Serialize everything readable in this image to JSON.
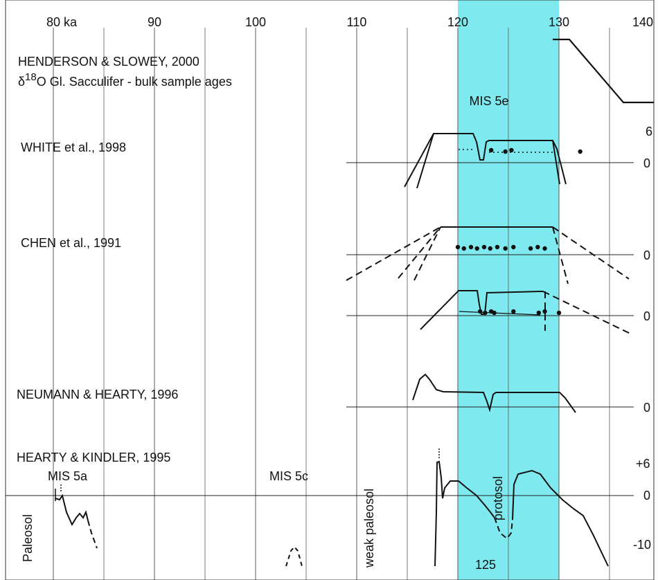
{
  "chart_data": {
    "type": "line",
    "x_unit": "ka",
    "x_ticks": [
      {
        "value": 80,
        "label": "80  ka"
      },
      {
        "value": 90,
        "label": "90"
      },
      {
        "value": 100,
        "label": "100"
      },
      {
        "value": 110,
        "label": "110"
      },
      {
        "value": 120,
        "label": "120"
      },
      {
        "value": 130,
        "label": "130"
      },
      {
        "value": 140,
        "label": "140"
      }
    ],
    "xlim": [
      75,
      140
    ],
    "grid": true,
    "shaded_band": {
      "x": [
        120,
        130
      ],
      "color": "#7ee9ee",
      "label": "MIS 5e",
      "bottom_label": "125"
    },
    "colors": {
      "band": "#7ee9ee",
      "lines": "#111111",
      "grid": "#555555"
    },
    "panels": [
      {
        "title": "HENDERSON & SLOWEY, 2000",
        "subtitle_prefix": "δ",
        "subtitle_sup": "18",
        "subtitle_main": "O   Gl. Sacculifer -  bulk sample ages",
        "trace": {
          "x": [
            132,
            136,
            142
          ],
          "level": [
            "high",
            "falling",
            "low"
          ]
        }
      },
      {
        "title": "WHITE et al., 1998",
        "scale_labels": [
          "6",
          "0"
        ],
        "sample_ages": [
          123.3,
          124.7,
          125.3,
          132.1
        ]
      },
      {
        "title": "CHEN et al., 1991",
        "scale_labels": [
          "0",
          "0"
        ],
        "sample_ages": [
          120,
          120.6,
          121.3,
          121.9,
          122.6,
          123.2,
          123.9,
          124.7,
          125.5,
          127.2,
          127.9,
          128.6
        ]
      },
      {
        "title": "NEUMANN & HEARTY, 1996",
        "scale_labels": [
          "0"
        ]
      },
      {
        "title": "HEARTY  &  KINDLER,  1995",
        "scale_labels": [
          "+6",
          "0",
          "-10"
        ],
        "annotations": [
          {
            "text": "MIS 5a",
            "x": 80
          },
          {
            "text": "MIS  5c",
            "x": 105
          },
          {
            "text": "Paleosol",
            "orientation": "vertical"
          },
          {
            "text": "weak paleosol",
            "orientation": "vertical"
          },
          {
            "text": "protosol",
            "orientation": "vertical"
          }
        ]
      }
    ]
  }
}
